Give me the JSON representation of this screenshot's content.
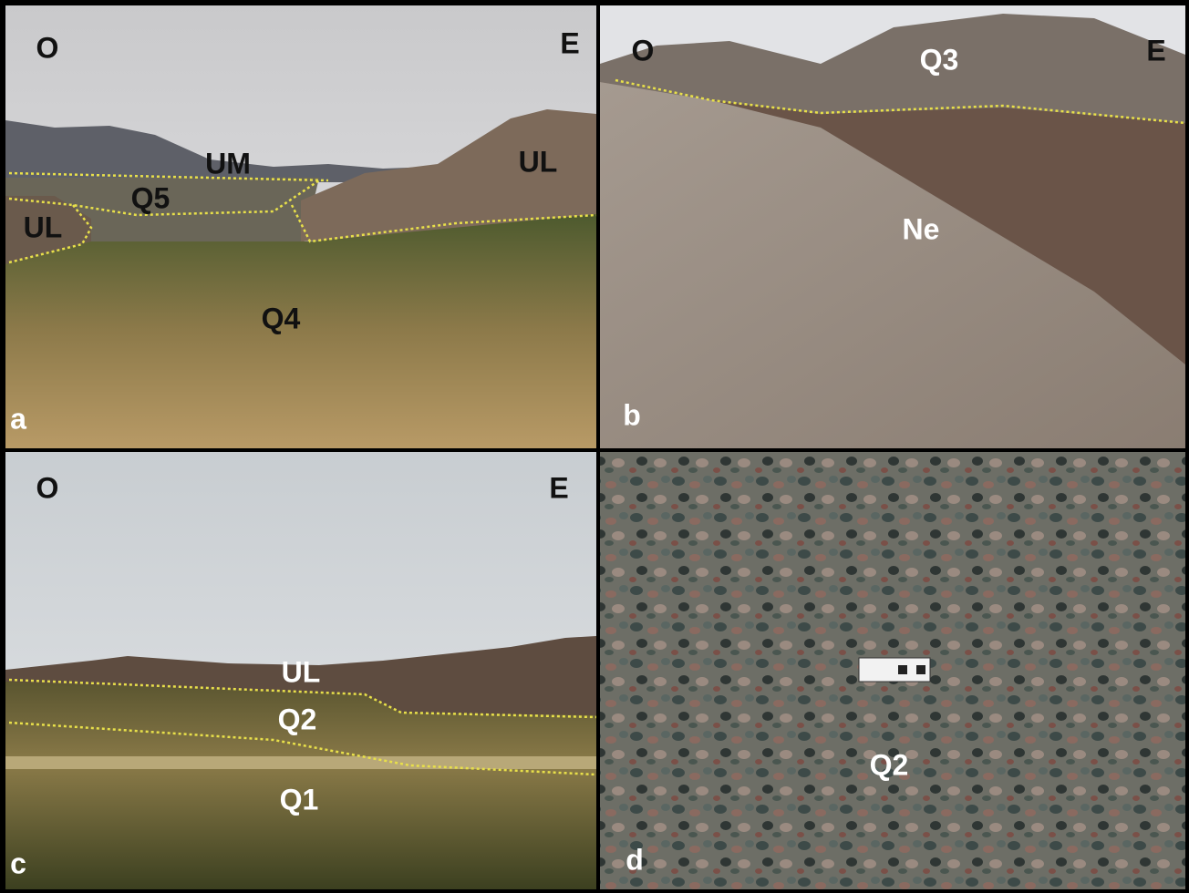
{
  "panels": [
    {
      "letter": "a",
      "west": "O",
      "east": "E",
      "units": [
        "UM",
        "Q5",
        "UL",
        "UL",
        "Q4"
      ]
    },
    {
      "letter": "b",
      "west": "O",
      "east": "E",
      "units": [
        "Q3",
        "Ne"
      ]
    },
    {
      "letter": "c",
      "west": "O",
      "east": "E",
      "units": [
        "UL",
        "Q2",
        "Q1"
      ]
    },
    {
      "letter": "d",
      "units": [
        "Q2"
      ]
    }
  ]
}
